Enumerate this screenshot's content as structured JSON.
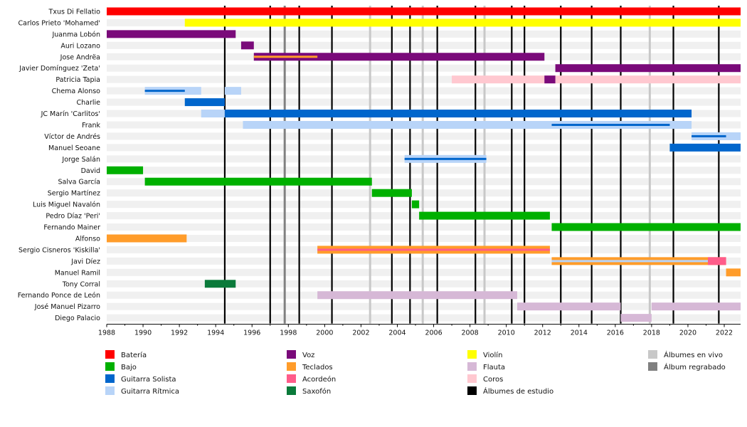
{
  "chart_data": {
    "type": "timeline",
    "xlim": [
      1988,
      2022.9
    ],
    "ticks": [
      1988,
      1990,
      1992,
      1994,
      1996,
      1998,
      2000,
      2002,
      2004,
      2006,
      2008,
      2010,
      2012,
      2014,
      2016,
      2018,
      2020,
      2022
    ],
    "studio_albums": [
      1994.5,
      1997.0,
      1998.6,
      2000.4,
      2003.7,
      2004.7,
      2006.2,
      2008.3,
      2010.3,
      2011.0,
      2013.0,
      2014.7,
      2016.3,
      2019.2,
      2021.7
    ],
    "live_albums": [
      2002.5,
      2005.4,
      2008.8,
      2017.9
    ],
    "rerecorded_albums": [
      1997.8
    ],
    "instruments": {
      "bateria": "#ff0000",
      "bajo": "#00b000",
      "guitarra_solista": "#0066cc",
      "guitarra_ritmica": "#b8d4f8",
      "voz": "#7a0a7a",
      "teclados": "#ff9c2a",
      "acordeon": "#ff5c8a",
      "saxofon": "#0a7a3a",
      "violin": "#ffff00",
      "flauta": "#d6b8d6",
      "coros": "#ffc8d0"
    },
    "members": [
      {
        "name": "Txus Di Fellatio",
        "spans": [
          {
            "i": "bateria",
            "s": 1988.0,
            "e": 2022.9
          }
        ]
      },
      {
        "name": "Carlos Prieto 'Mohamed'",
        "spans": [
          {
            "i": "violin",
            "s": 1992.3,
            "e": 2022.9
          }
        ]
      },
      {
        "name": "Juanma Lobón",
        "spans": [
          {
            "i": "voz",
            "s": 1988.0,
            "e": 1995.1
          }
        ]
      },
      {
        "name": "Auri Lozano",
        "spans": [
          {
            "i": "voz",
            "s": 1995.4,
            "e": 1996.1
          }
        ]
      },
      {
        "name": "Jose Andrëa",
        "spans": [
          {
            "i": "voz",
            "s": 1996.1,
            "e": 2012.1
          },
          {
            "i": "teclados",
            "s": 1996.1,
            "e": 1999.6,
            "thin": true
          }
        ]
      },
      {
        "name": "Javier Domínguez 'Zeta'",
        "spans": [
          {
            "i": "voz",
            "s": 2012.7,
            "e": 2022.9
          }
        ]
      },
      {
        "name": "Patricia Tapia",
        "spans": [
          {
            "i": "coros",
            "s": 2007.0,
            "e": 2022.9
          },
          {
            "i": "voz",
            "s": 2012.1,
            "e": 2012.7
          }
        ]
      },
      {
        "name": "Chema Alonso",
        "spans": [
          {
            "i": "guitarra_ritmica",
            "s": 1990.1,
            "e": 1993.2
          },
          {
            "i": "guitarra_ritmica",
            "s": 1994.5,
            "e": 1995.4
          },
          {
            "i": "guitarra_solista",
            "s": 1990.1,
            "e": 1992.3,
            "thin": true
          }
        ]
      },
      {
        "name": "Charlie",
        "spans": [
          {
            "i": "guitarra_solista",
            "s": 1992.3,
            "e": 1994.5
          }
        ]
      },
      {
        "name": "JC Marín 'Carlitos'",
        "spans": [
          {
            "i": "guitarra_ritmica",
            "s": 1993.2,
            "e": 1994.5
          },
          {
            "i": "guitarra_solista",
            "s": 1994.5,
            "e": 2020.2
          }
        ]
      },
      {
        "name": "Frank",
        "spans": [
          {
            "i": "guitarra_ritmica",
            "s": 1995.5,
            "e": 2020.2
          },
          {
            "i": "guitarra_solista",
            "s": 2012.5,
            "e": 2019.0,
            "thin": true
          }
        ]
      },
      {
        "name": "Víctor de Andrés",
        "spans": [
          {
            "i": "guitarra_ritmica",
            "s": 2020.2,
            "e": 2022.9
          },
          {
            "i": "guitarra_solista",
            "s": 2020.2,
            "e": 2022.1,
            "thin": true
          }
        ]
      },
      {
        "name": "Manuel Seoane",
        "spans": [
          {
            "i": "guitarra_solista",
            "s": 2019.0,
            "e": 2022.9
          }
        ]
      },
      {
        "name": "Jorge Salán",
        "spans": [
          {
            "i": "guitarra_ritmica",
            "s": 2004.4,
            "e": 2008.9
          },
          {
            "i": "guitarra_solista",
            "s": 2004.4,
            "e": 2008.9,
            "thin": true
          }
        ]
      },
      {
        "name": "David",
        "spans": [
          {
            "i": "bajo",
            "s": 1988.0,
            "e": 1990.0
          }
        ]
      },
      {
        "name": "Salva García",
        "spans": [
          {
            "i": "bajo",
            "s": 1990.1,
            "e": 2002.6
          }
        ]
      },
      {
        "name": "Sergio Martínez",
        "spans": [
          {
            "i": "bajo",
            "s": 2002.6,
            "e": 2004.8
          }
        ]
      },
      {
        "name": "Luis Miguel Navalón",
        "spans": [
          {
            "i": "bajo",
            "s": 2004.8,
            "e": 2005.2
          }
        ]
      },
      {
        "name": "Pedro Díaz 'Peri'",
        "spans": [
          {
            "i": "bajo",
            "s": 2005.2,
            "e": 2012.4
          }
        ]
      },
      {
        "name": "Fernando Mainer",
        "spans": [
          {
            "i": "bajo",
            "s": 2012.5,
            "e": 2022.9
          }
        ]
      },
      {
        "name": "Alfonso",
        "spans": [
          {
            "i": "teclados",
            "s": 1988.0,
            "e": 1992.4
          }
        ]
      },
      {
        "name": "Sergio Cisneros 'Kiskilla'",
        "spans": [
          {
            "i": "teclados",
            "s": 1999.6,
            "e": 2012.4
          },
          {
            "i": "acordeon",
            "s": 1999.6,
            "e": 2012.4,
            "thin": true
          }
        ]
      },
      {
        "name": "Javi Díez",
        "spans": [
          {
            "i": "teclados",
            "s": 2012.5,
            "e": 2022.1
          },
          {
            "i": "guitarra_ritmica",
            "s": 2012.5,
            "e": 2021.1,
            "thin": true
          },
          {
            "i": "acordeon",
            "s": 2021.1,
            "e": 2022.1
          }
        ]
      },
      {
        "name": "Manuel Ramil",
        "spans": [
          {
            "i": "teclados",
            "s": 2022.1,
            "e": 2022.9
          }
        ]
      },
      {
        "name": "Tony Corral",
        "spans": [
          {
            "i": "saxofon",
            "s": 1993.4,
            "e": 1995.1
          }
        ]
      },
      {
        "name": "Fernando Ponce de León",
        "spans": [
          {
            "i": "flauta",
            "s": 1999.6,
            "e": 2010.6
          }
        ]
      },
      {
        "name": "José Manuel Pizarro",
        "spans": [
          {
            "i": "flauta",
            "s": 2010.6,
            "e": 2016.3
          },
          {
            "i": "flauta",
            "s": 2018.0,
            "e": 2022.9
          }
        ]
      },
      {
        "name": "Diego Palacio",
        "spans": [
          {
            "i": "flauta",
            "s": 2016.3,
            "e": 2018.0
          }
        ]
      }
    ],
    "legend": [
      {
        "label": "Batería",
        "key": "bateria"
      },
      {
        "label": "Bajo",
        "key": "bajo"
      },
      {
        "label": "Guitarra Solista",
        "key": "guitarra_solista"
      },
      {
        "label": "Guitarra Rítmica",
        "key": "guitarra_ritmica"
      },
      {
        "label": "Voz",
        "key": "voz"
      },
      {
        "label": "Teclados",
        "key": "teclados"
      },
      {
        "label": "Acordeón",
        "key": "acordeon"
      },
      {
        "label": "Saxofón",
        "key": "saxofon"
      },
      {
        "label": "Violín",
        "key": "violin"
      },
      {
        "label": "Flauta",
        "key": "flauta"
      },
      {
        "label": "Coros",
        "key": "coros"
      },
      {
        "label": "Álbumes de estudio",
        "key": "studio"
      },
      {
        "label": "Álbumes en vivo",
        "key": "live"
      },
      {
        "label": "Álbum regrabado",
        "key": "rerecorded"
      }
    ],
    "line_colors": {
      "studio": "#000000",
      "live": "#c8c8c8",
      "rerecorded": "#808080"
    }
  }
}
